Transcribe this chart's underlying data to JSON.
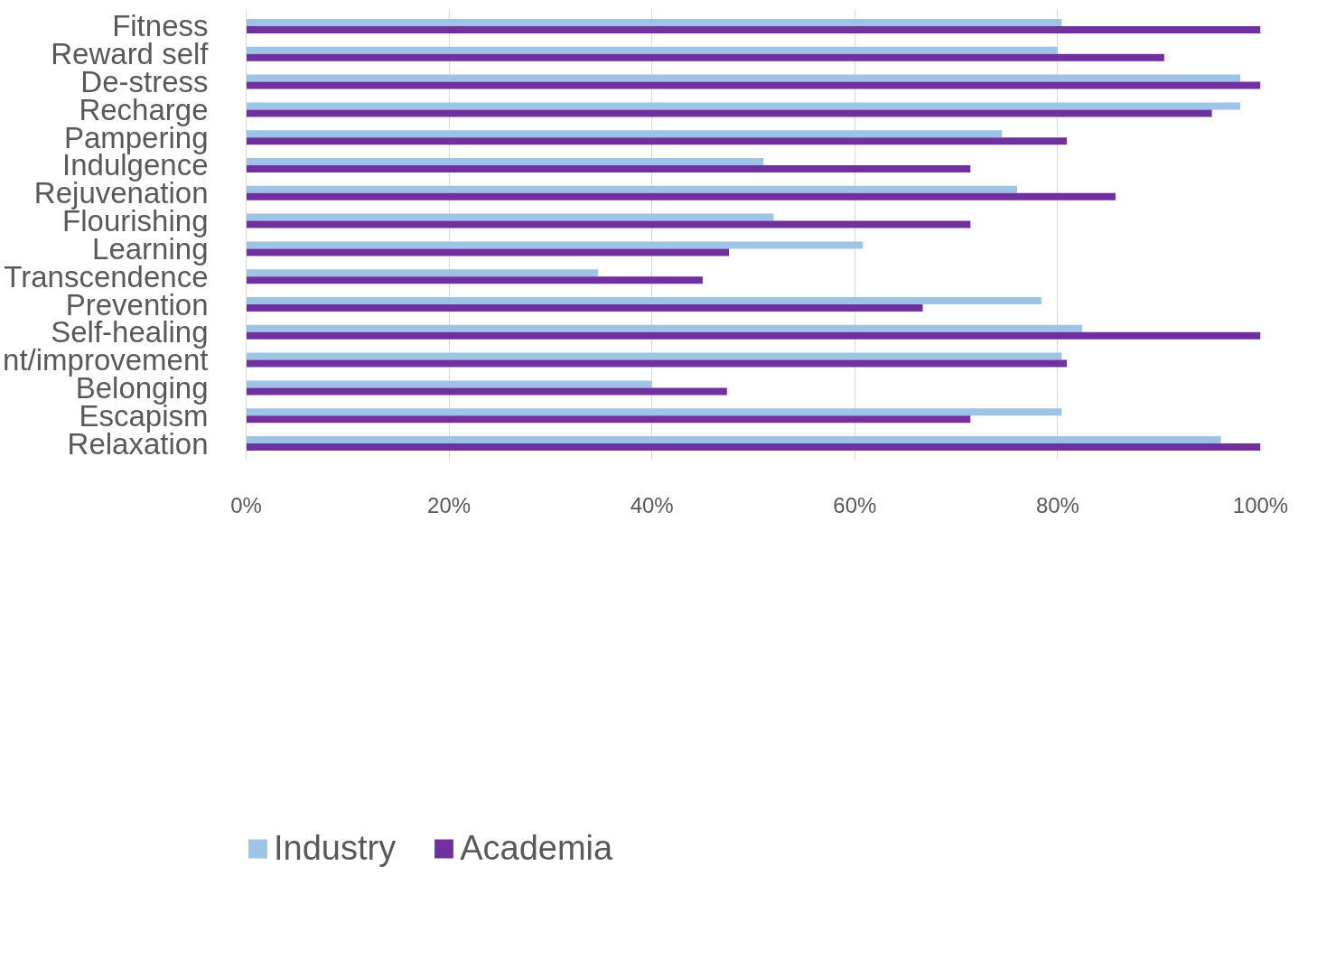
{
  "chart_data": {
    "type": "bar",
    "orientation": "horizontal",
    "categories": [
      "Fitness",
      "Reward self",
      "De-stress",
      "Recharge",
      "Pampering",
      "Indulgence",
      "Rejuvenation",
      "Flourishing",
      "Learning",
      "Transcendence",
      "Prevention",
      "Self-healing",
      "nt/improvement",
      "Belonging",
      "Escapism",
      "Relaxation"
    ],
    "series": [
      {
        "name": "Industry",
        "color": "#9dc3e6",
        "values": [
          80.4,
          80.0,
          98.0,
          98.0,
          74.5,
          51.0,
          76.0,
          52.0,
          60.8,
          34.7,
          78.4,
          82.4,
          80.4,
          40.0,
          80.4,
          96.1
        ]
      },
      {
        "name": "Academia",
        "color": "#7030a0",
        "values": [
          100,
          90.5,
          100,
          95.2,
          80.9,
          71.4,
          85.7,
          71.4,
          47.6,
          45.0,
          66.7,
          100,
          80.9,
          47.4,
          71.4,
          100
        ]
      }
    ],
    "xlim": [
      0,
      100
    ],
    "xticks": [
      {
        "value": 0,
        "label": "0%"
      },
      {
        "value": 20,
        "label": "20%"
      },
      {
        "value": 40,
        "label": "40%"
      },
      {
        "value": 60,
        "label": "60%"
      },
      {
        "value": 80,
        "label": "80%"
      },
      {
        "value": 100,
        "label": "100%"
      }
    ],
    "grid": "x",
    "legend": "bottom"
  }
}
